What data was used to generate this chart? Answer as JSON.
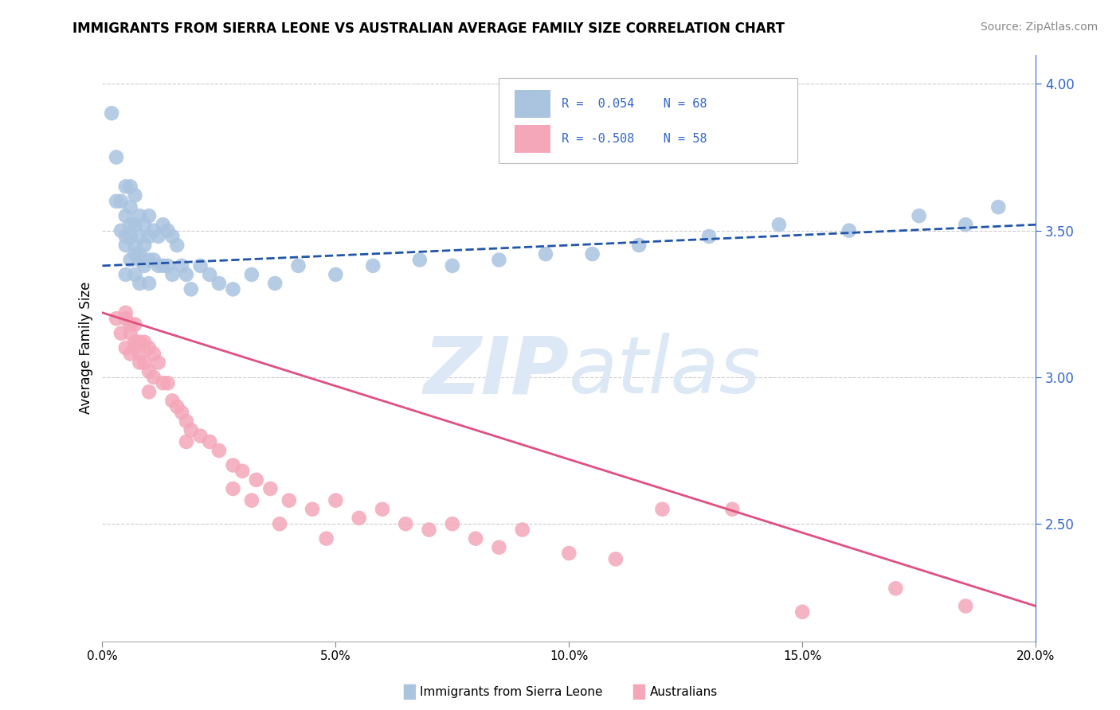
{
  "title": "IMMIGRANTS FROM SIERRA LEONE VS AUSTRALIAN AVERAGE FAMILY SIZE CORRELATION CHART",
  "source": "Source: ZipAtlas.com",
  "ylabel": "Average Family Size",
  "x_min": 0.0,
  "x_max": 0.2,
  "y_min": 2.1,
  "y_max": 4.1,
  "y_ticks_right": [
    2.5,
    3.0,
    3.5,
    4.0
  ],
  "x_ticks": [
    0.0,
    0.05,
    0.1,
    0.15,
    0.2
  ],
  "x_tick_labels": [
    "0.0%",
    "5.0%",
    "10.0%",
    "15.0%",
    "20.0%"
  ],
  "blue_color": "#aac4e0",
  "pink_color": "#f4a7b9",
  "trend_blue_color": "#2255aa",
  "trend_pink_color": "#e05080",
  "watermark_color": "#dce8f5",
  "background_color": "#ffffff",
  "grid_color": "#cccccc",
  "blue_trend_x0": 0.0,
  "blue_trend_x1": 0.2,
  "blue_trend_y0": 3.38,
  "blue_trend_y1": 3.52,
  "pink_trend_x0": 0.0,
  "pink_trend_x1": 0.2,
  "pink_trend_y0": 3.22,
  "pink_trend_y1": 2.22,
  "blue_scatter_x": [
    0.002,
    0.003,
    0.003,
    0.004,
    0.004,
    0.005,
    0.005,
    0.005,
    0.005,
    0.006,
    0.006,
    0.006,
    0.006,
    0.007,
    0.007,
    0.007,
    0.007,
    0.008,
    0.008,
    0.008,
    0.008,
    0.009,
    0.009,
    0.009,
    0.01,
    0.01,
    0.01,
    0.01,
    0.011,
    0.011,
    0.012,
    0.012,
    0.013,
    0.013,
    0.014,
    0.014,
    0.015,
    0.015,
    0.016,
    0.017,
    0.018,
    0.019,
    0.021,
    0.023,
    0.025,
    0.028,
    0.032,
    0.037,
    0.042,
    0.05,
    0.058,
    0.068,
    0.075,
    0.085,
    0.095,
    0.105,
    0.115,
    0.13,
    0.145,
    0.16,
    0.175,
    0.185,
    0.192,
    0.005,
    0.006,
    0.007,
    0.008
  ],
  "blue_scatter_y": [
    3.9,
    3.75,
    3.6,
    3.6,
    3.5,
    3.65,
    3.55,
    3.45,
    3.35,
    3.65,
    3.58,
    3.48,
    3.4,
    3.62,
    3.52,
    3.42,
    3.35,
    3.55,
    3.48,
    3.4,
    3.32,
    3.52,
    3.45,
    3.38,
    3.55,
    3.48,
    3.4,
    3.32,
    3.5,
    3.4,
    3.48,
    3.38,
    3.52,
    3.38,
    3.5,
    3.38,
    3.48,
    3.35,
    3.45,
    3.38,
    3.35,
    3.3,
    3.38,
    3.35,
    3.32,
    3.3,
    3.35,
    3.32,
    3.38,
    3.35,
    3.38,
    3.4,
    3.38,
    3.4,
    3.42,
    3.42,
    3.45,
    3.48,
    3.52,
    3.5,
    3.55,
    3.52,
    3.58,
    3.48,
    3.52,
    3.45,
    3.42
  ],
  "pink_scatter_x": [
    0.003,
    0.004,
    0.005,
    0.005,
    0.006,
    0.006,
    0.007,
    0.007,
    0.008,
    0.008,
    0.009,
    0.009,
    0.01,
    0.01,
    0.011,
    0.011,
    0.012,
    0.013,
    0.014,
    0.015,
    0.016,
    0.017,
    0.018,
    0.019,
    0.021,
    0.023,
    0.025,
    0.028,
    0.03,
    0.033,
    0.036,
    0.04,
    0.045,
    0.05,
    0.055,
    0.06,
    0.065,
    0.07,
    0.075,
    0.08,
    0.085,
    0.09,
    0.1,
    0.11,
    0.12,
    0.135,
    0.15,
    0.17,
    0.185,
    0.038,
    0.028,
    0.018,
    0.01,
    0.005,
    0.006,
    0.007,
    0.008,
    0.032,
    0.048
  ],
  "pink_scatter_y": [
    3.2,
    3.15,
    3.2,
    3.1,
    3.15,
    3.08,
    3.18,
    3.1,
    3.12,
    3.05,
    3.12,
    3.05,
    3.1,
    3.02,
    3.08,
    3.0,
    3.05,
    2.98,
    2.98,
    2.92,
    2.9,
    2.88,
    2.85,
    2.82,
    2.8,
    2.78,
    2.75,
    2.7,
    2.68,
    2.65,
    2.62,
    2.58,
    2.55,
    2.58,
    2.52,
    2.55,
    2.5,
    2.48,
    2.5,
    2.45,
    2.42,
    2.48,
    2.4,
    2.38,
    2.55,
    2.55,
    2.2,
    2.28,
    2.22,
    2.5,
    2.62,
    2.78,
    2.95,
    3.22,
    3.18,
    3.12,
    3.08,
    2.58,
    2.45
  ]
}
